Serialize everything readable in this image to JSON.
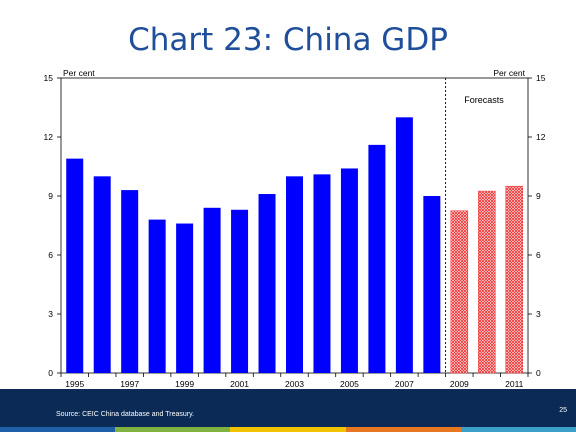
{
  "slide": {
    "title": "Chart 23: China GDP",
    "source": "Source: CEIC China database and Treasury.",
    "page_number": "25"
  },
  "colors": {
    "actual_bar": "#0000ff",
    "forecast_bar": "#ee3333",
    "title": "#1f4e9a",
    "footer": "#0b2a55",
    "stripe": [
      "#1f5fa8",
      "#7fb23f",
      "#f2c300",
      "#e87722",
      "#3aa0c8"
    ]
  },
  "chart_data": {
    "type": "bar",
    "categories": [
      "1995",
      "1996",
      "1997",
      "1998",
      "1999",
      "2000",
      "2001",
      "2002",
      "2003",
      "2004",
      "2005",
      "2006",
      "2007",
      "2008",
      "2009",
      "2010",
      "2011"
    ],
    "series": [
      {
        "values": [
          10.9,
          10.0,
          9.3,
          7.8,
          7.6,
          8.4,
          8.3,
          9.1,
          10.0,
          10.1,
          10.4,
          11.6,
          13.0,
          9.0,
          null,
          null,
          null
        ]
      },
      {
        "values": [
          null,
          null,
          null,
          null,
          null,
          null,
          null,
          null,
          null,
          null,
          null,
          null,
          null,
          null,
          8.25,
          9.25,
          9.5
        ]
      }
    ],
    "x_tick_labels": [
      "1995",
      "1997",
      "1999",
      "2001",
      "2003",
      "2005",
      "2007",
      "2009",
      "2011"
    ],
    "y_ticks": [
      0,
      3,
      6,
      9,
      12,
      15
    ],
    "ylim": [
      0,
      15
    ],
    "y_unit_left": "Per cent",
    "y_unit_right": "Per cent",
    "annotation": "Forecasts",
    "forecast_divider_after": "2008",
    "grid": false,
    "legend": "none"
  }
}
